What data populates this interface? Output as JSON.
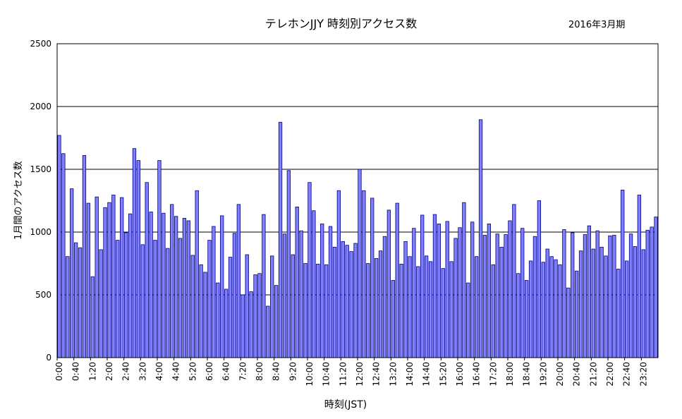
{
  "chart_data": {
    "type": "bar",
    "title": "テレホンJJY 時刻別アクセス数",
    "subtitle": "2016年3月期",
    "xlabel": "時刻(JST)",
    "ylabel": "1月間のアクセス数",
    "ylim": [
      0,
      2500
    ],
    "yticks": [
      "0",
      "500",
      "1000",
      "1500",
      "2000",
      "2500"
    ],
    "grid": true,
    "bar_color": "#7f7fff",
    "bar_stroke": "#000080",
    "tick_labels": [
      "0:00",
      "0:40",
      "1:20",
      "2:00",
      "2:40",
      "3:20",
      "4:00",
      "4:40",
      "5:20",
      "6:00",
      "6:40",
      "7:20",
      "8:00",
      "8:40",
      "9:20",
      "10:00",
      "10:40",
      "11:20",
      "12:00",
      "12:40",
      "13:20",
      "14:00",
      "14:40",
      "15:20",
      "16:00",
      "16:40",
      "17:20",
      "18:00",
      "18:40",
      "19:20",
      "20:00",
      "20:40",
      "21:20",
      "22:00",
      "22:40",
      "23:20"
    ],
    "values": [
      1770,
      1625,
      805,
      1345,
      915,
      875,
      1610,
      1230,
      645,
      1280,
      860,
      1195,
      1235,
      1295,
      935,
      1275,
      995,
      1145,
      1665,
      1570,
      900,
      1395,
      1160,
      935,
      1570,
      1150,
      870,
      1220,
      1125,
      950,
      1110,
      1090,
      815,
      1330,
      740,
      680,
      935,
      1045,
      595,
      1130,
      545,
      800,
      990,
      1220,
      500,
      820,
      525,
      660,
      670,
      1140,
      410,
      810,
      575,
      1875,
      985,
      1490,
      820,
      1200,
      1010,
      750,
      1395,
      1170,
      745,
      1065,
      740,
      1045,
      880,
      1330,
      925,
      895,
      845,
      910,
      1500,
      1330,
      750,
      1270,
      790,
      850,
      965,
      1175,
      615,
      1230,
      745,
      925,
      805,
      1030,
      725,
      1135,
      810,
      765,
      1140,
      1065,
      710,
      1085,
      765,
      950,
      1035,
      1235,
      595,
      1080,
      805,
      1895,
      975,
      1065,
      740,
      985,
      880,
      980,
      1090,
      1220,
      670,
      1030,
      615,
      770,
      965,
      1250,
      760,
      865,
      805,
      780,
      740,
      1020,
      555,
      995,
      690,
      850,
      980,
      1050,
      865,
      1010,
      880,
      810,
      970,
      975,
      705,
      1335,
      770,
      985,
      885,
      1295,
      860,
      1015,
      1040,
      1120
    ]
  }
}
